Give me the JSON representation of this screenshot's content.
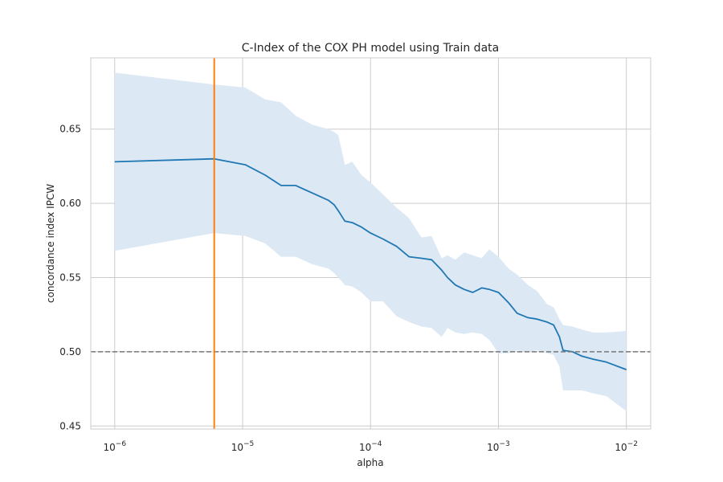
{
  "chart_data": {
    "type": "line",
    "title": "C-Index of the COX PH model using Train data",
    "xlabel": "alpha",
    "ylabel": "concordance index IPCW",
    "xscale": "log",
    "xlim": [
      6.5e-07,
      0.0155
    ],
    "ylim": [
      0.448,
      0.698
    ],
    "grid": true,
    "x_ticks": [
      {
        "value": 1e-06,
        "base": "10",
        "exp": "−6"
      },
      {
        "value": 1e-05,
        "base": "10",
        "exp": "−5"
      },
      {
        "value": 0.0001,
        "base": "10",
        "exp": "−4"
      },
      {
        "value": 0.001,
        "base": "10",
        "exp": "−3"
      },
      {
        "value": 0.01,
        "base": "10",
        "exp": "−2"
      }
    ],
    "y_ticks": [
      0.45,
      0.5,
      0.55,
      0.6,
      0.65
    ],
    "y_tick_labels": [
      "0.45",
      "0.50",
      "0.55",
      "0.60",
      "0.65"
    ],
    "colors": {
      "line": "#1f77b4",
      "band": "#dce8f3",
      "vline": "#ff7f0e",
      "hline": "#777777",
      "grid": "#cccccc"
    },
    "reference_lines": {
      "vline_x": 6e-06,
      "hline_y": 0.5
    },
    "series": [
      {
        "x": [
          1e-06,
          6e-06,
          1.05e-05,
          1.5e-05,
          2e-05,
          2.6e-05,
          3.5e-05,
          4.7e-05,
          5.2e-05,
          5.6e-05,
          6.3e-05,
          7.2e-05,
          8.5e-05,
          0.0001,
          0.000125,
          0.00016,
          0.0002,
          0.00025,
          0.0003,
          0.00036,
          0.0004,
          0.00046,
          0.00054,
          0.00063,
          0.00074,
          0.00085,
          0.001,
          0.0012,
          0.0014,
          0.0017,
          0.002,
          0.0024,
          0.0027,
          0.003,
          0.0032,
          0.0038,
          0.0045,
          0.0055,
          0.007,
          0.01
        ],
        "y": [
          0.628,
          0.63,
          0.626,
          0.619,
          0.612,
          0.612,
          0.607,
          0.602,
          0.599,
          0.595,
          0.588,
          0.587,
          0.584,
          0.58,
          0.576,
          0.571,
          0.564,
          0.563,
          0.562,
          0.555,
          0.55,
          0.545,
          0.542,
          0.54,
          0.543,
          0.542,
          0.54,
          0.533,
          0.526,
          0.523,
          0.522,
          0.52,
          0.518,
          0.51,
          0.501,
          0.5,
          0.497,
          0.495,
          0.493,
          0.488
        ],
        "upper": [
          0.688,
          0.68,
          0.678,
          0.67,
          0.668,
          0.659,
          0.653,
          0.65,
          0.648,
          0.646,
          0.626,
          0.628,
          0.619,
          0.614,
          0.606,
          0.597,
          0.59,
          0.577,
          0.578,
          0.563,
          0.565,
          0.562,
          0.567,
          0.565,
          0.563,
          0.569,
          0.564,
          0.556,
          0.552,
          0.545,
          0.541,
          0.532,
          0.53,
          0.522,
          0.518,
          0.517,
          0.515,
          0.513,
          0.513,
          0.514
        ],
        "lower": [
          0.568,
          0.58,
          0.578,
          0.573,
          0.564,
          0.564,
          0.559,
          0.556,
          0.553,
          0.55,
          0.545,
          0.544,
          0.54,
          0.534,
          0.534,
          0.524,
          0.52,
          0.517,
          0.516,
          0.51,
          0.516,
          0.513,
          0.512,
          0.513,
          0.512,
          0.508,
          0.499,
          0.499,
          0.501,
          0.5,
          0.501,
          0.499,
          0.498,
          0.49,
          0.474,
          0.474,
          0.474,
          0.472,
          0.47,
          0.46
        ]
      }
    ]
  }
}
